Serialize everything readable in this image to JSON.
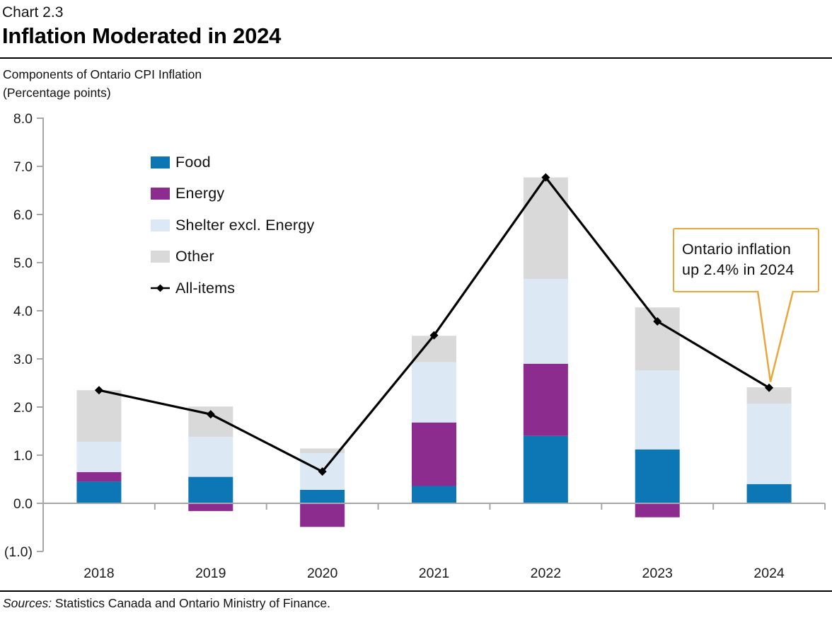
{
  "header": {
    "chart_number": "Chart 2.3",
    "title": "Inflation Moderated in 2024"
  },
  "subtitle": {
    "line1": "Components of Ontario CPI Inflation",
    "line2": "(Percentage points)"
  },
  "chart_data": {
    "type": "stacked-bar-with-line",
    "title": "Inflation Moderated in 2024",
    "subtitle": "Components of Ontario CPI Inflation (Percentage points)",
    "categories": [
      "2018",
      "2019",
      "2020",
      "2021",
      "2022",
      "2023",
      "2024"
    ],
    "series": [
      {
        "name": "Food",
        "type": "bar",
        "color": "#0d76b4",
        "values": [
          0.45,
          0.55,
          0.28,
          0.36,
          1.4,
          1.12,
          0.4
        ]
      },
      {
        "name": "Energy",
        "type": "bar",
        "color": "#8c2c8e",
        "values": [
          0.2,
          -0.16,
          -0.49,
          1.32,
          1.5,
          -0.29,
          0.0
        ]
      },
      {
        "name": "Shelter excl. Energy",
        "type": "bar",
        "color": "#dce9f4",
        "values": [
          0.63,
          0.83,
          0.76,
          1.25,
          1.76,
          1.64,
          1.67
        ]
      },
      {
        "name": "Other",
        "type": "bar",
        "color": "#d9d9d9",
        "values": [
          1.07,
          0.63,
          0.1,
          0.55,
          2.11,
          1.31,
          0.34
        ]
      },
      {
        "name": "All-items",
        "type": "line",
        "color": "#000000",
        "values": [
          2.35,
          1.85,
          0.66,
          3.49,
          6.77,
          3.78,
          2.4
        ]
      }
    ],
    "ylim": [
      -1.0,
      8.0
    ],
    "y_ticks": [
      {
        "label": "8.0",
        "value": 8
      },
      {
        "label": "7.0",
        "value": 7
      },
      {
        "label": "6.0",
        "value": 6
      },
      {
        "label": "5.0",
        "value": 5
      },
      {
        "label": "4.0",
        "value": 4
      },
      {
        "label": "3.0",
        "value": 3
      },
      {
        "label": "2.0",
        "value": 2
      },
      {
        "label": "1.0",
        "value": 1
      },
      {
        "label": "0.0",
        "value": 0
      },
      {
        "label": "(1.0)",
        "value": -1
      }
    ],
    "grid": "none",
    "legend_position": "upper-left-inside",
    "axis_color": "#a7a7a7"
  },
  "legend": {
    "items": [
      {
        "label": "Food",
        "marker": "swatch",
        "color": "#0d76b4"
      },
      {
        "label": "Energy",
        "marker": "swatch",
        "color": "#8c2c8e"
      },
      {
        "label": "Shelter excl. Energy",
        "marker": "swatch",
        "color": "#dce9f4"
      },
      {
        "label": "Other",
        "marker": "swatch",
        "color": "#d9d9d9"
      },
      {
        "label": "All-items",
        "marker": "line-diamond",
        "color": "#000000"
      }
    ]
  },
  "annotation": {
    "line1": "Ontario inflation",
    "line2": "up 2.4% in 2024",
    "border_color": "#e8a63b"
  },
  "source": {
    "prefix": "Sources:",
    "text": " Statistics Canada and Ontario Ministry of Finance."
  }
}
